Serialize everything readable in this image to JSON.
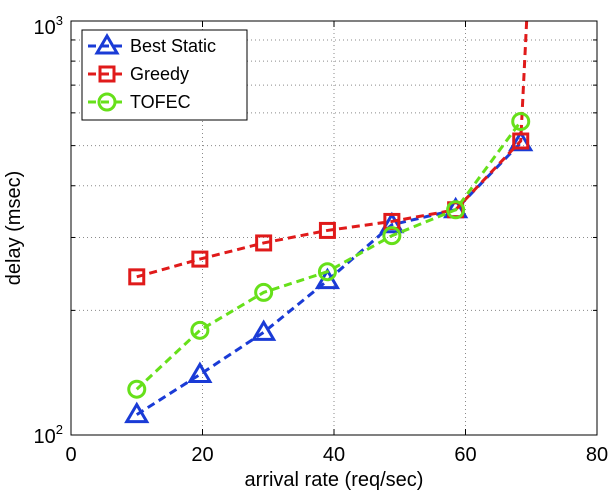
{
  "chart_data": {
    "type": "line",
    "title": "",
    "xlabel": "arrival rate (req/sec)",
    "ylabel": "delay (msec)",
    "x_scale": "linear",
    "y_scale": "log",
    "xlim": [
      0,
      80
    ],
    "ylim": [
      100,
      1000
    ],
    "x_ticks": [
      0,
      20,
      40,
      60,
      80
    ],
    "y_tick_labels": {
      "bottom": {
        "base": "10",
        "exponent": "2"
      },
      "top": {
        "base": "10",
        "exponent": "3"
      }
    },
    "grid": true,
    "legend_position": "top-left",
    "series": [
      {
        "name": "Best Static",
        "color": "#1a3bd6",
        "marker": "triangle",
        "line_style": "dashed",
        "points": [
          [
            10,
            112
          ],
          [
            19.6,
            140
          ],
          [
            29.3,
            177
          ],
          [
            39,
            236
          ],
          [
            48.8,
            322
          ],
          [
            58.5,
            350
          ],
          [
            68.4,
            508
          ]
        ]
      },
      {
        "name": "Greedy",
        "color": "#e01a1a",
        "marker": "square",
        "line_style": "dashed",
        "points": [
          [
            10,
            241
          ],
          [
            19.6,
            266
          ],
          [
            29.3,
            291
          ],
          [
            39,
            312
          ],
          [
            48.8,
            328
          ],
          [
            58.5,
            350
          ],
          [
            68.4,
            513
          ],
          [
            69.3,
            1000
          ]
        ]
      },
      {
        "name": "TOFEC",
        "color": "#66e01a",
        "marker": "circle",
        "line_style": "dashed",
        "points": [
          [
            10,
            129
          ],
          [
            19.6,
            179
          ],
          [
            29.3,
            221
          ],
          [
            39,
            248
          ],
          [
            48.8,
            303
          ],
          [
            58.5,
            350
          ],
          [
            68.4,
            572
          ]
        ]
      }
    ]
  }
}
